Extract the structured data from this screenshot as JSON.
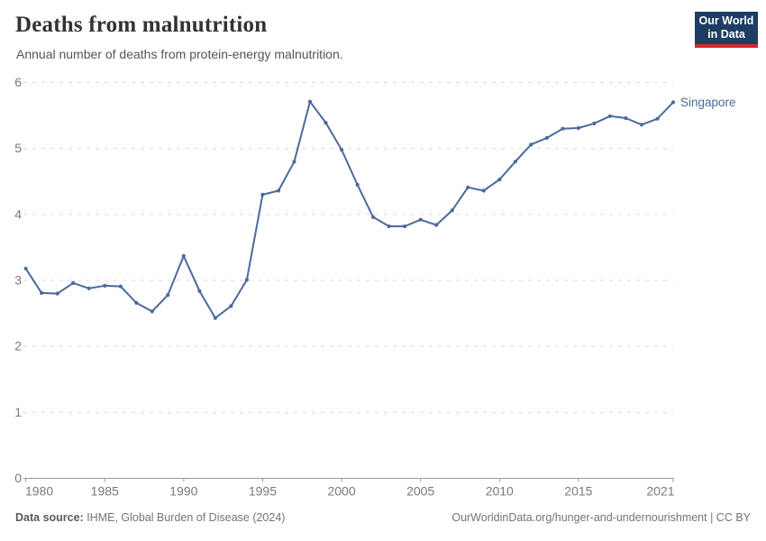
{
  "header": {
    "title": "Deaths from malnutrition",
    "subtitle": "Annual number of deaths from protein-energy malnutrition.",
    "logo": {
      "line1": "Our World",
      "line2": "in Data"
    }
  },
  "colors": {
    "line": "#4c6a9c",
    "end_label": "#4c6a9c",
    "grid": "#d9d9d9",
    "axis": "#999999",
    "tick_text": "#7a7a7a",
    "logo_bg": "#1d3d63",
    "logo_red": "#d7262b"
  },
  "chart_data": {
    "type": "line",
    "title": "Deaths from malnutrition",
    "subtitle": "Annual number of deaths from protein-energy malnutrition.",
    "xlabel": "",
    "ylabel": "",
    "xlim": [
      1979.85,
      2021
    ],
    "ylim": [
      0,
      6
    ],
    "grid": "horizontal-dashed",
    "legend_position": "end-of-line",
    "x_ticks": [
      1980,
      1985,
      1990,
      1995,
      2000,
      2005,
      2010,
      2015,
      2021
    ],
    "y_ticks": [
      0,
      1,
      2,
      3,
      4,
      5,
      6
    ],
    "series": [
      {
        "name": "Singapore",
        "x": [
          1980,
          1981,
          1982,
          1983,
          1984,
          1985,
          1986,
          1987,
          1988,
          1989,
          1990,
          1991,
          1992,
          1993,
          1994,
          1995,
          1996,
          1997,
          1998,
          1999,
          2000,
          2001,
          2002,
          2003,
          2004,
          2005,
          2006,
          2007,
          2008,
          2009,
          2010,
          2011,
          2012,
          2013,
          2014,
          2015,
          2016,
          2017,
          2018,
          2019,
          2020,
          2021
        ],
        "values": [
          3.18,
          2.81,
          2.8,
          2.96,
          2.88,
          2.92,
          2.91,
          2.66,
          2.53,
          2.78,
          3.37,
          2.84,
          2.43,
          2.61,
          3.01,
          4.3,
          4.36,
          4.8,
          5.71,
          5.39,
          4.98,
          4.45,
          3.96,
          3.82,
          3.82,
          3.92,
          3.84,
          4.06,
          4.41,
          4.36,
          4.53,
          4.8,
          5.06,
          5.16,
          5.3,
          5.31,
          5.38,
          5.49,
          5.46,
          5.36,
          5.45,
          5.7
        ]
      }
    ]
  },
  "footer": {
    "source_label": "Data source:",
    "source_text": " IHME, Global Burden of Disease (2024)",
    "link": "OurWorldinData.org/hunger-and-undernourishment | CC BY"
  }
}
